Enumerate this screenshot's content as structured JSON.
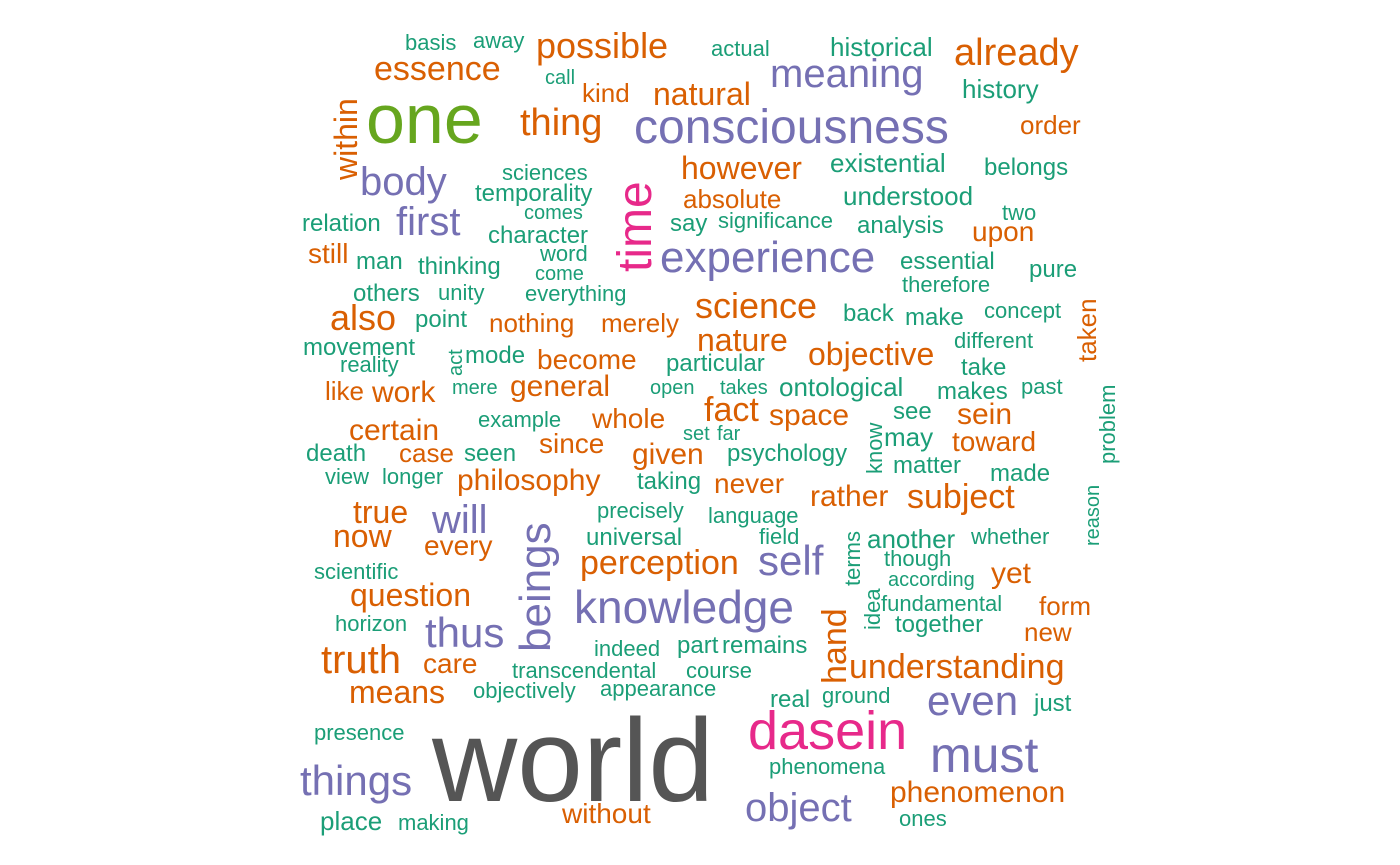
{
  "palette": {
    "green": "#1B9E77",
    "orange": "#D95F02",
    "purple": "#7570B3",
    "magenta": "#E7298A",
    "lime": "#66A61E",
    "gray": "#555555"
  },
  "words": [
    {
      "text": "world",
      "tier": "gray"
    },
    {
      "text": "one",
      "tier": "lime"
    },
    {
      "text": "time",
      "tier": "magenta"
    },
    {
      "text": "dasein",
      "tier": "magenta"
    },
    {
      "text": "consciousness",
      "tier": "purple"
    },
    {
      "text": "experience",
      "tier": "purple"
    },
    {
      "text": "knowledge",
      "tier": "purple"
    },
    {
      "text": "beings",
      "tier": "purple"
    },
    {
      "text": "meaning",
      "tier": "purple"
    },
    {
      "text": "things",
      "tier": "purple"
    },
    {
      "text": "object",
      "tier": "purple"
    },
    {
      "text": "must",
      "tier": "purple"
    },
    {
      "text": "even",
      "tier": "purple"
    },
    {
      "text": "self",
      "tier": "purple"
    },
    {
      "text": "thus",
      "tier": "purple"
    },
    {
      "text": "will",
      "tier": "purple"
    },
    {
      "text": "first",
      "tier": "purple"
    },
    {
      "text": "body",
      "tier": "purple"
    },
    {
      "text": "possible",
      "tier": "orange"
    },
    {
      "text": "already",
      "tier": "orange"
    },
    {
      "text": "essence",
      "tier": "orange"
    },
    {
      "text": "natural",
      "tier": "orange"
    },
    {
      "text": "thing",
      "tier": "orange"
    },
    {
      "text": "within",
      "tier": "orange"
    },
    {
      "text": "kind",
      "tier": "orange"
    },
    {
      "text": "order",
      "tier": "orange"
    },
    {
      "text": "however",
      "tier": "orange"
    },
    {
      "text": "absolute",
      "tier": "orange"
    },
    {
      "text": "upon",
      "tier": "orange"
    },
    {
      "text": "still",
      "tier": "orange"
    },
    {
      "text": "science",
      "tier": "orange"
    },
    {
      "text": "also",
      "tier": "orange"
    },
    {
      "text": "nothing",
      "tier": "orange"
    },
    {
      "text": "merely",
      "tier": "orange"
    },
    {
      "text": "nature",
      "tier": "orange"
    },
    {
      "text": "objective",
      "tier": "orange"
    },
    {
      "text": "become",
      "tier": "orange"
    },
    {
      "text": "general",
      "tier": "orange"
    },
    {
      "text": "work",
      "tier": "orange"
    },
    {
      "text": "like",
      "tier": "orange"
    },
    {
      "text": "fact",
      "tier": "orange"
    },
    {
      "text": "space",
      "tier": "orange"
    },
    {
      "text": "sein",
      "tier": "orange"
    },
    {
      "text": "whole",
      "tier": "orange"
    },
    {
      "text": "certain",
      "tier": "orange"
    },
    {
      "text": "since",
      "tier": "orange"
    },
    {
      "text": "toward",
      "tier": "orange"
    },
    {
      "text": "case",
      "tier": "orange"
    },
    {
      "text": "given",
      "tier": "orange"
    },
    {
      "text": "philosophy",
      "tier": "orange"
    },
    {
      "text": "never",
      "tier": "orange"
    },
    {
      "text": "rather",
      "tier": "orange"
    },
    {
      "text": "subject",
      "tier": "orange"
    },
    {
      "text": "true",
      "tier": "orange"
    },
    {
      "text": "now",
      "tier": "orange"
    },
    {
      "text": "every",
      "tier": "orange"
    },
    {
      "text": "perception",
      "tier": "orange"
    },
    {
      "text": "yet",
      "tier": "orange"
    },
    {
      "text": "question",
      "tier": "orange"
    },
    {
      "text": "form",
      "tier": "orange"
    },
    {
      "text": "new",
      "tier": "orange"
    },
    {
      "text": "hand",
      "tier": "orange"
    },
    {
      "text": "truth",
      "tier": "orange"
    },
    {
      "text": "care",
      "tier": "orange"
    },
    {
      "text": "understanding",
      "tier": "orange"
    },
    {
      "text": "means",
      "tier": "orange"
    },
    {
      "text": "phenomenon",
      "tier": "orange"
    },
    {
      "text": "without",
      "tier": "orange"
    },
    {
      "text": "taken",
      "tier": "orange"
    },
    {
      "text": "basis",
      "tier": "green"
    },
    {
      "text": "away",
      "tier": "green"
    },
    {
      "text": "actual",
      "tier": "green"
    },
    {
      "text": "historical",
      "tier": "green"
    },
    {
      "text": "call",
      "tier": "green"
    },
    {
      "text": "history",
      "tier": "green"
    },
    {
      "text": "sciences",
      "tier": "green"
    },
    {
      "text": "existential",
      "tier": "green"
    },
    {
      "text": "belongs",
      "tier": "green"
    },
    {
      "text": "temporality",
      "tier": "green"
    },
    {
      "text": "understood",
      "tier": "green"
    },
    {
      "text": "comes",
      "tier": "green"
    },
    {
      "text": "relation",
      "tier": "green"
    },
    {
      "text": "say",
      "tier": "green"
    },
    {
      "text": "significance",
      "tier": "green"
    },
    {
      "text": "analysis",
      "tier": "green"
    },
    {
      "text": "two",
      "tier": "green"
    },
    {
      "text": "character",
      "tier": "green"
    },
    {
      "text": "word",
      "tier": "green"
    },
    {
      "text": "man",
      "tier": "green"
    },
    {
      "text": "thinking",
      "tier": "green"
    },
    {
      "text": "come",
      "tier": "green"
    },
    {
      "text": "essential",
      "tier": "green"
    },
    {
      "text": "pure",
      "tier": "green"
    },
    {
      "text": "therefore",
      "tier": "green"
    },
    {
      "text": "others",
      "tier": "green"
    },
    {
      "text": "unity",
      "tier": "green"
    },
    {
      "text": "everything",
      "tier": "green"
    },
    {
      "text": "point",
      "tier": "green"
    },
    {
      "text": "back",
      "tier": "green"
    },
    {
      "text": "make",
      "tier": "green"
    },
    {
      "text": "concept",
      "tier": "green"
    },
    {
      "text": "movement",
      "tier": "green"
    },
    {
      "text": "act",
      "tier": "green"
    },
    {
      "text": "mode",
      "tier": "green"
    },
    {
      "text": "different",
      "tier": "green"
    },
    {
      "text": "reality",
      "tier": "green"
    },
    {
      "text": "particular",
      "tier": "green"
    },
    {
      "text": "take",
      "tier": "green"
    },
    {
      "text": "mere",
      "tier": "green"
    },
    {
      "text": "open",
      "tier": "green"
    },
    {
      "text": "takes",
      "tier": "green"
    },
    {
      "text": "ontological",
      "tier": "green"
    },
    {
      "text": "makes",
      "tier": "green"
    },
    {
      "text": "past",
      "tier": "green"
    },
    {
      "text": "example",
      "tier": "green"
    },
    {
      "text": "see",
      "tier": "green"
    },
    {
      "text": "set",
      "tier": "green"
    },
    {
      "text": "far",
      "tier": "green"
    },
    {
      "text": "may",
      "tier": "green"
    },
    {
      "text": "know",
      "tier": "green"
    },
    {
      "text": "problem",
      "tier": "green"
    },
    {
      "text": "death",
      "tier": "green"
    },
    {
      "text": "seen",
      "tier": "green"
    },
    {
      "text": "psychology",
      "tier": "green"
    },
    {
      "text": "matter",
      "tier": "green"
    },
    {
      "text": "view",
      "tier": "green"
    },
    {
      "text": "longer",
      "tier": "green"
    },
    {
      "text": "taking",
      "tier": "green"
    },
    {
      "text": "made",
      "tier": "green"
    },
    {
      "text": "reason",
      "tier": "green"
    },
    {
      "text": "precisely",
      "tier": "green"
    },
    {
      "text": "language",
      "tier": "green"
    },
    {
      "text": "universal",
      "tier": "green"
    },
    {
      "text": "field",
      "tier": "green"
    },
    {
      "text": "terms",
      "tier": "green"
    },
    {
      "text": "another",
      "tier": "green"
    },
    {
      "text": "whether",
      "tier": "green"
    },
    {
      "text": "though",
      "tier": "green"
    },
    {
      "text": "scientific",
      "tier": "green"
    },
    {
      "text": "according",
      "tier": "green"
    },
    {
      "text": "idea",
      "tier": "green"
    },
    {
      "text": "fundamental",
      "tier": "green"
    },
    {
      "text": "horizon",
      "tier": "green"
    },
    {
      "text": "together",
      "tier": "green"
    },
    {
      "text": "indeed",
      "tier": "green"
    },
    {
      "text": "part",
      "tier": "green"
    },
    {
      "text": "remains",
      "tier": "green"
    },
    {
      "text": "transcendental",
      "tier": "green"
    },
    {
      "text": "course",
      "tier": "green"
    },
    {
      "text": "objectively",
      "tier": "green"
    },
    {
      "text": "appearance",
      "tier": "green"
    },
    {
      "text": "real",
      "tier": "green"
    },
    {
      "text": "ground",
      "tier": "green"
    },
    {
      "text": "just",
      "tier": "green"
    },
    {
      "text": "presence",
      "tier": "green"
    },
    {
      "text": "phenomena",
      "tier": "green"
    },
    {
      "text": "place",
      "tier": "green"
    },
    {
      "text": "making",
      "tier": "green"
    },
    {
      "text": "ones",
      "tier": "green"
    }
  ]
}
